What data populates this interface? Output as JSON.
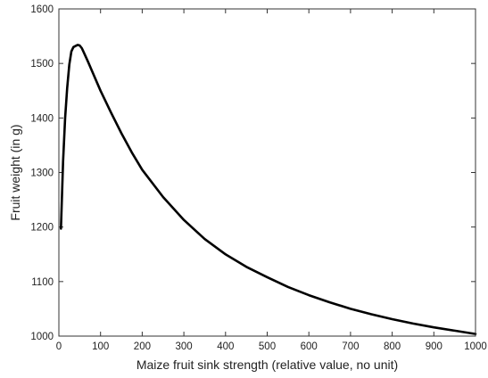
{
  "chart_data": {
    "type": "line",
    "title": "",
    "xlabel": "Maize fruit sink strength (relative value, no unit)",
    "ylabel": "Fruit weight (in g)",
    "xlim": [
      0,
      1000
    ],
    "ylim": [
      1000,
      1600
    ],
    "xticks": [
      0,
      100,
      200,
      300,
      400,
      500,
      600,
      700,
      800,
      900,
      1000
    ],
    "yticks": [
      1000,
      1100,
      1200,
      1300,
      1400,
      1500,
      1600
    ],
    "xtick_labels": [
      "0",
      "100",
      "200",
      "300",
      "400",
      "500",
      "600",
      "700",
      "800",
      "900",
      "1000"
    ],
    "ytick_labels": [
      "1000",
      "1100",
      "1200",
      "1300",
      "1400",
      "1500",
      "1600"
    ],
    "grid": false,
    "legend": "none",
    "series": [
      {
        "color": "#000000",
        "x": [
          5,
          10,
          15,
          20,
          25,
          30,
          35,
          40,
          45,
          50,
          55,
          60,
          70,
          80,
          100,
          125,
          150,
          175,
          200,
          250,
          300,
          350,
          400,
          450,
          500,
          550,
          600,
          650,
          700,
          750,
          800,
          850,
          900,
          950,
          1000
        ],
        "y": [
          1197,
          1320,
          1400,
          1455,
          1498,
          1522,
          1530,
          1532,
          1534,
          1533,
          1528,
          1520,
          1503,
          1485,
          1450,
          1410,
          1372,
          1337,
          1305,
          1255,
          1213,
          1178,
          1150,
          1127,
          1108,
          1090,
          1075,
          1062,
          1050,
          1040,
          1031,
          1023,
          1016,
          1010,
          1004
        ]
      }
    ]
  }
}
